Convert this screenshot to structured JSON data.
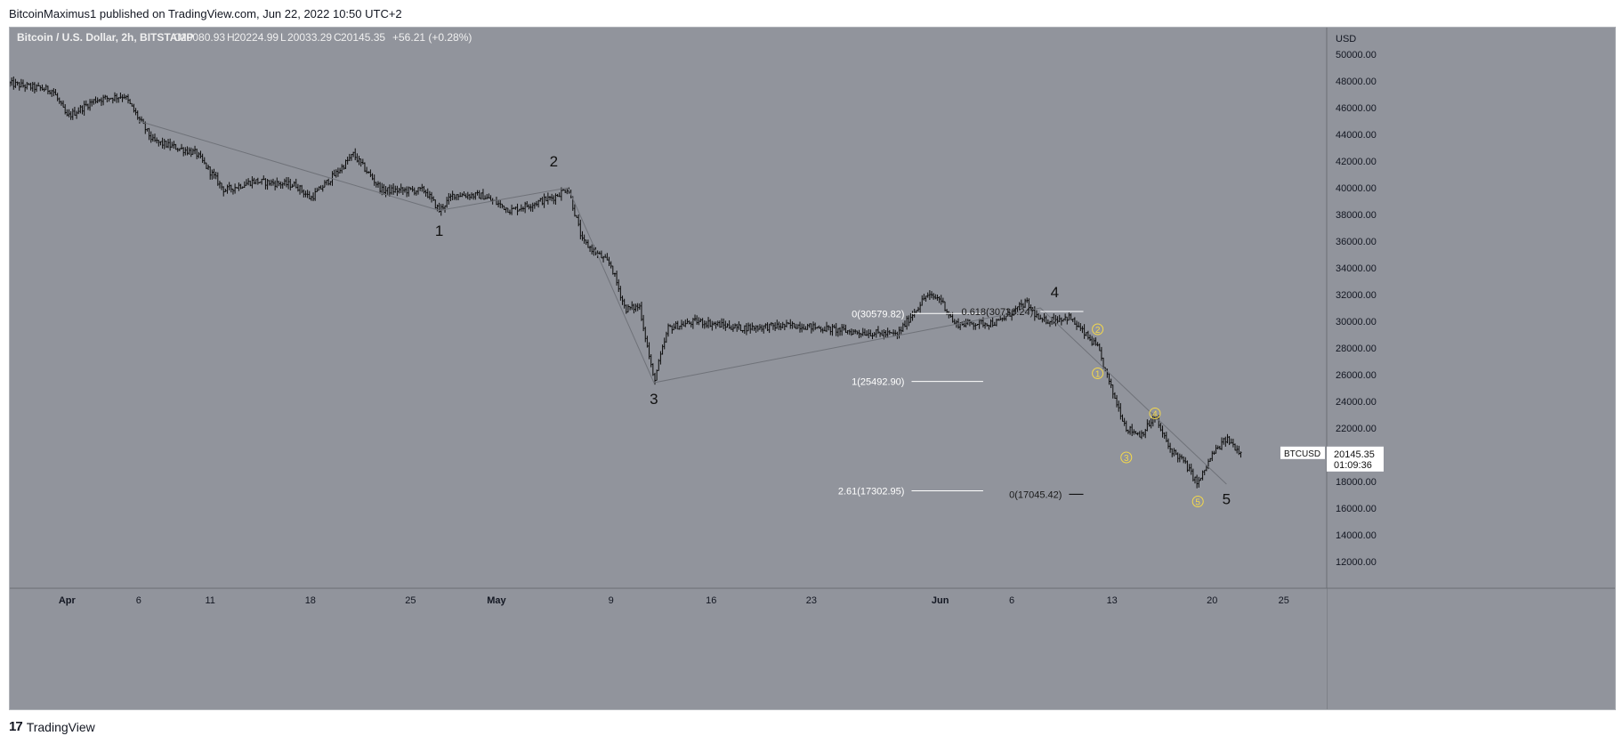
{
  "header": {
    "published_by": "BitcoinMaximus1 published on TradingView.com, Jun 22, 2022 10:50 UTC+2"
  },
  "legend": {
    "symbol": "Bitcoin / U.S. Dollar, 2h, BITSTAMP",
    "open_label": "O",
    "open": "20080.93",
    "high_label": "H",
    "high": "20224.99",
    "low_label": "L",
    "low": "20033.29",
    "close_label": "C",
    "close": "20145.35",
    "change": "+56.21 (+0.28%)"
  },
  "price_tag": {
    "symbol": "BTCUSD",
    "price": "20145.35",
    "countdown": "01:09:36"
  },
  "footer": {
    "logo_mark": "17",
    "brand": "TradingView"
  },
  "colors": {
    "plot_bg": "#91949c",
    "candle": "#0b0b0b",
    "fib_line": "#ffffff",
    "wave_line": "#6f7279",
    "subwave": "#f5d94b",
    "axis_text": "#131722",
    "tag_bg": "#ffffff"
  },
  "chart_data": {
    "type": "line",
    "description_free": true,
    "y_axis": {
      "unit": "USD",
      "min": 10000,
      "max": 52000,
      "ticks": [
        12000,
        14000,
        16000,
        18000,
        20000,
        22000,
        24000,
        26000,
        28000,
        30000,
        32000,
        34000,
        36000,
        38000,
        40000,
        42000,
        44000,
        46000,
        48000,
        50000
      ],
      "tick_labels": [
        "12000.00",
        "14000.00",
        "16000.00",
        "18000.00",
        "20000.00",
        "22000.00",
        "24000.00",
        "26000.00",
        "28000.00",
        "30000.00",
        "32000.00",
        "34000.00",
        "36000.00",
        "38000.00",
        "40000.00",
        "42000.00",
        "44000.00",
        "46000.00",
        "48000.00",
        "50000.00"
      ]
    },
    "x_axis": {
      "start": "2022-03-28",
      "end": "2022-06-28",
      "ticks": [
        {
          "date": "2022-04-01",
          "label": "Apr",
          "bold": true
        },
        {
          "date": "2022-04-06",
          "label": "6"
        },
        {
          "date": "2022-04-11",
          "label": "11"
        },
        {
          "date": "2022-04-18",
          "label": "18"
        },
        {
          "date": "2022-04-25",
          "label": "25"
        },
        {
          "date": "2022-05-01",
          "label": "May",
          "bold": true
        },
        {
          "date": "2022-05-09",
          "label": "9"
        },
        {
          "date": "2022-05-16",
          "label": "16"
        },
        {
          "date": "2022-05-23",
          "label": "23"
        },
        {
          "date": "2022-06-01",
          "label": "Jun",
          "bold": true
        },
        {
          "date": "2022-06-06",
          "label": "6"
        },
        {
          "date": "2022-06-13",
          "label": "13"
        },
        {
          "date": "2022-06-20",
          "label": "20"
        },
        {
          "date": "2022-06-25",
          "label": "25"
        }
      ]
    },
    "price_path": [
      {
        "date": "2022-03-28",
        "price": 47800
      },
      {
        "date": "2022-03-31",
        "price": 47300
      },
      {
        "date": "2022-04-01",
        "price": 45300
      },
      {
        "date": "2022-04-03",
        "price": 46600
      },
      {
        "date": "2022-04-05",
        "price": 46900
      },
      {
        "date": "2022-04-07",
        "price": 43500
      },
      {
        "date": "2022-04-10",
        "price": 42600
      },
      {
        "date": "2022-04-12",
        "price": 39800
      },
      {
        "date": "2022-04-14",
        "price": 40500
      },
      {
        "date": "2022-04-17",
        "price": 40200
      },
      {
        "date": "2022-04-18",
        "price": 39200
      },
      {
        "date": "2022-04-20",
        "price": 41300
      },
      {
        "date": "2022-04-21",
        "price": 42500
      },
      {
        "date": "2022-04-23",
        "price": 39800
      },
      {
        "date": "2022-04-26",
        "price": 39800
      },
      {
        "date": "2022-04-27",
        "price": 38300
      },
      {
        "date": "2022-04-28",
        "price": 39500
      },
      {
        "date": "2022-04-30",
        "price": 39400
      },
      {
        "date": "2022-05-02",
        "price": 38300
      },
      {
        "date": "2022-05-05",
        "price": 39300
      },
      {
        "date": "2022-05-06",
        "price": 40000
      },
      {
        "date": "2022-05-07",
        "price": 36000
      },
      {
        "date": "2022-05-09",
        "price": 34200
      },
      {
        "date": "2022-05-10",
        "price": 30900
      },
      {
        "date": "2022-05-11",
        "price": 31100
      },
      {
        "date": "2022-05-12",
        "price": 25500
      },
      {
        "date": "2022-05-13",
        "price": 29500
      },
      {
        "date": "2022-05-15",
        "price": 30000
      },
      {
        "date": "2022-05-18",
        "price": 29500
      },
      {
        "date": "2022-05-22",
        "price": 29700
      },
      {
        "date": "2022-05-26",
        "price": 29200
      },
      {
        "date": "2022-05-29",
        "price": 29000
      },
      {
        "date": "2022-05-31",
        "price": 31900
      },
      {
        "date": "2022-06-01",
        "price": 31700
      },
      {
        "date": "2022-06-02",
        "price": 29800
      },
      {
        "date": "2022-06-05",
        "price": 29900
      },
      {
        "date": "2022-06-07",
        "price": 31400
      },
      {
        "date": "2022-06-08",
        "price": 30000
      },
      {
        "date": "2022-06-10",
        "price": 30300
      },
      {
        "date": "2022-06-12",
        "price": 28000
      },
      {
        "date": "2022-06-13",
        "price": 24800
      },
      {
        "date": "2022-06-14",
        "price": 22000
      },
      {
        "date": "2022-06-15",
        "price": 21500
      },
      {
        "date": "2022-06-16",
        "price": 22800
      },
      {
        "date": "2022-06-17",
        "price": 20500
      },
      {
        "date": "2022-06-18",
        "price": 19500
      },
      {
        "date": "2022-06-19",
        "price": 17800
      },
      {
        "date": "2022-06-20",
        "price": 20000
      },
      {
        "date": "2022-06-21",
        "price": 21200
      },
      {
        "date": "2022-06-22",
        "price": 20150
      }
    ],
    "wave_path": [
      {
        "date": "2022-04-06",
        "price": 45000
      },
      {
        "date": "2022-04-27",
        "price": 38300
      },
      {
        "date": "2022-05-06",
        "price": 40000
      },
      {
        "date": "2022-05-12",
        "price": 25400
      },
      {
        "date": "2022-06-08",
        "price": 31000
      },
      {
        "date": "2022-06-21",
        "price": 17800
      }
    ],
    "wave_labels": [
      {
        "label": "1",
        "date": "2022-04-27",
        "price": 36400
      },
      {
        "label": "2",
        "date": "2022-05-05",
        "price": 41600
      },
      {
        "label": "3",
        "date": "2022-05-12",
        "price": 23800
      },
      {
        "label": "4",
        "date": "2022-06-09",
        "price": 31800
      },
      {
        "label": "5",
        "date": "2022-06-21",
        "price": 16300
      }
    ],
    "subwave_labels": [
      {
        "label": "1",
        "date": "2022-06-12",
        "price": 26100
      },
      {
        "label": "2",
        "date": "2022-06-12",
        "price": 29400
      },
      {
        "label": "3",
        "date": "2022-06-14",
        "price": 19800
      },
      {
        "label": "4",
        "date": "2022-06-16",
        "price": 23100
      },
      {
        "label": "5",
        "date": "2022-06-19",
        "price": 16500
      }
    ],
    "fib_levels": [
      {
        "label": "0(30579.82)",
        "price": 30579.82,
        "from": "2022-05-30",
        "to": "2022-06-04"
      },
      {
        "label": "1(25492.90)",
        "price": 25492.9,
        "from": "2022-05-30",
        "to": "2022-06-04"
      },
      {
        "label": "2.61(17302.95)",
        "price": 17302.95,
        "from": "2022-05-30",
        "to": "2022-06-04"
      },
      {
        "label": "0.618(30736.24)",
        "price": 30736.24,
        "from": "2022-06-08",
        "to": "2022-06-11"
      },
      {
        "label": "0(17045.42)",
        "price": 17045.42,
        "from": "2022-06-10",
        "to": "2022-06-11"
      }
    ],
    "last_price": 20145.35
  }
}
